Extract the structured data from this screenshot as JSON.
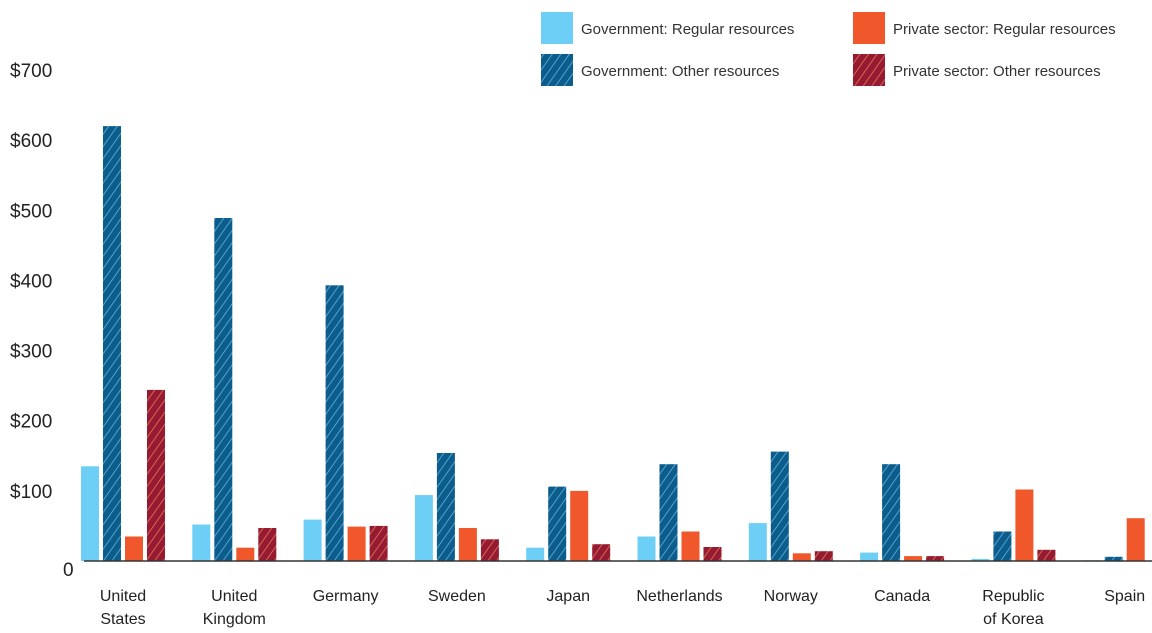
{
  "chart_data": {
    "type": "bar",
    "title": "",
    "xlabel": "",
    "ylabel": "",
    "ylim": [
      0,
      700
    ],
    "y_ticks": [
      {
        "value": 0,
        "label": "0"
      },
      {
        "value": 100,
        "label": "$100"
      },
      {
        "value": 200,
        "label": "$200"
      },
      {
        "value": 300,
        "label": "$300"
      },
      {
        "value": 400,
        "label": "$400"
      },
      {
        "value": 500,
        "label": "$500"
      },
      {
        "value": 600,
        "label": "$600"
      },
      {
        "value": 700,
        "label": "$700"
      }
    ],
    "grid": false,
    "legend_position": "top-right",
    "categories": [
      {
        "line1": "United",
        "line2": "States"
      },
      {
        "line1": "United",
        "line2": "Kingdom"
      },
      {
        "line1": "Germany",
        "line2": ""
      },
      {
        "line1": "Sweden",
        "line2": ""
      },
      {
        "line1": "Japan",
        "line2": ""
      },
      {
        "line1": "Netherlands",
        "line2": ""
      },
      {
        "line1": "Norway",
        "line2": ""
      },
      {
        "line1": "Canada",
        "line2": ""
      },
      {
        "line1": "Republic",
        "line2": "of Korea"
      },
      {
        "line1": "Spain",
        "line2": ""
      }
    ],
    "series": [
      {
        "name": "Government: Regular resources",
        "color": "#6dcff6",
        "pattern": "solid",
        "values": [
          135,
          52,
          59,
          94,
          19,
          35,
          54,
          12,
          3,
          1
        ]
      },
      {
        "name": "Government: Other resources",
        "color": "#0c5c8c",
        "pattern": "hatched",
        "values": [
          620,
          489,
          393,
          154,
          106,
          138,
          156,
          138,
          42,
          6
        ]
      },
      {
        "name": "Private sector: Regular resources",
        "color": "#f0572a",
        "pattern": "solid",
        "values": [
          35,
          19,
          49,
          47,
          100,
          42,
          11,
          7,
          102,
          61
        ]
      },
      {
        "name": "Private sector: Other resources",
        "color": "#961a32",
        "pattern": "hatched",
        "values": [
          244,
          47,
          50,
          31,
          24,
          20,
          14,
          7,
          16,
          0
        ]
      }
    ]
  }
}
